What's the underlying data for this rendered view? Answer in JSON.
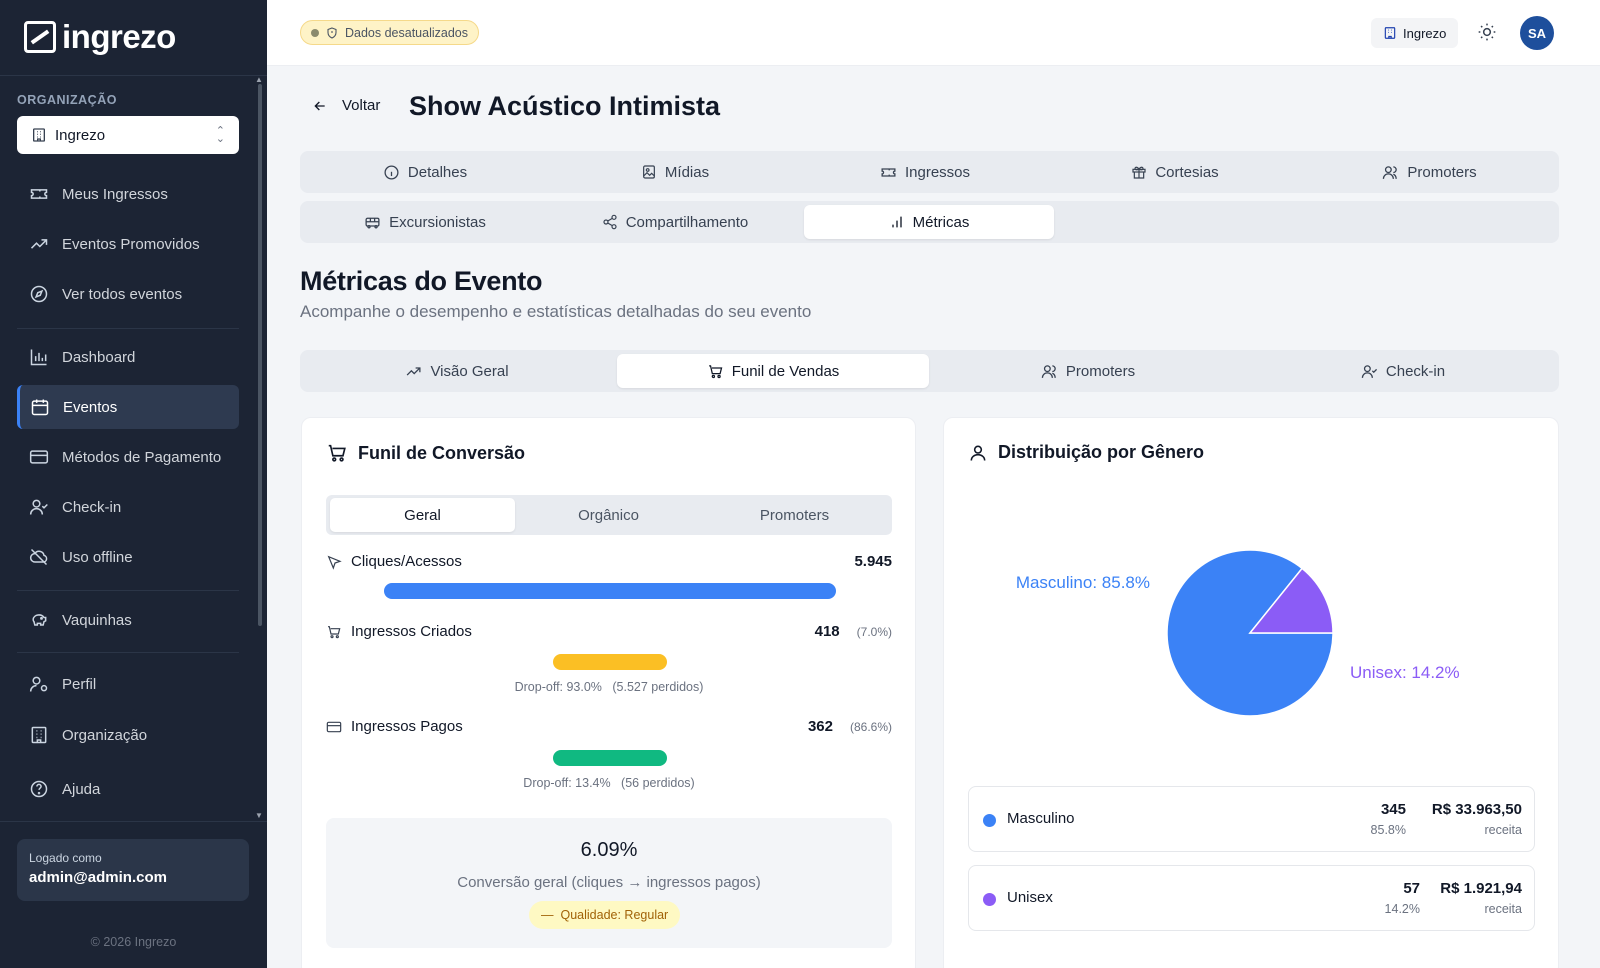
{
  "brand": {
    "name": "ingrezo"
  },
  "sidebar": {
    "org_label": "ORGANIZAÇÃO",
    "org_value": "Ingrezo",
    "items": [
      {
        "label": "Meus Ingressos",
        "icon": "ticket-icon"
      },
      {
        "label": "Eventos Promovidos",
        "icon": "trending-up-icon"
      },
      {
        "label": "Ver todos eventos",
        "icon": "compass-icon"
      },
      {
        "label": "Dashboard",
        "icon": "bar-chart-icon"
      },
      {
        "label": "Eventos",
        "icon": "calendar-icon",
        "active": true
      },
      {
        "label": "Métodos de Pagamento",
        "icon": "credit-card-icon"
      },
      {
        "label": "Check-in",
        "icon": "user-check-icon"
      },
      {
        "label": "Uso offline",
        "icon": "cloud-off-icon"
      },
      {
        "label": "Vaquinhas",
        "icon": "piggy-bank-icon"
      },
      {
        "label": "Perfil",
        "icon": "user-gear-icon"
      },
      {
        "label": "Organização",
        "icon": "building-icon"
      },
      {
        "label": "Ajuda",
        "icon": "help-circle-icon"
      }
    ],
    "logged_label": "Logado como",
    "logged_email": "admin@admin.com",
    "copyright": "© 2026 Ingrezo"
  },
  "topbar": {
    "stale_badge": "Dados desatualizados",
    "org_chip": "Ingrezo",
    "avatar": "SA"
  },
  "page": {
    "back_label": "Voltar",
    "title": "Show Acústico Intimista",
    "tabs_row1": [
      "Detalhes",
      "Mídias",
      "Ingressos",
      "Cortesias",
      "Promoters"
    ],
    "tabs_row2": [
      "Excursionistas",
      "Compartilhamento",
      "Métricas"
    ],
    "active_tab": "Métricas",
    "section_title": "Métricas do Evento",
    "section_subtitle": "Acompanhe o desempenho e estatísticas detalhadas do seu evento",
    "metric_tabs": [
      "Visão Geral",
      "Funil de Vendas",
      "Promoters",
      "Check-in"
    ],
    "active_metric_tab": "Funil de Vendas"
  },
  "funnel": {
    "title": "Funil de Conversão",
    "subtabs": [
      "Geral",
      "Orgânico",
      "Promoters"
    ],
    "active_subtab": "Geral",
    "steps": [
      {
        "label": "Cliques/Acessos",
        "value": "5.945",
        "pct": "",
        "color": "#3b82f6",
        "fill": 1.0,
        "dropoff": "",
        "lost": ""
      },
      {
        "label": "Ingressos Criados",
        "value": "418",
        "pct": "(7.0%)",
        "color": "#fbbf24",
        "fill": 0.07,
        "dropoff": "Drop-off: 93.0%",
        "lost": "(5.527 perdidos)"
      },
      {
        "label": "Ingressos Pagos",
        "value": "362",
        "pct": "(86.6%)",
        "color": "#10b981",
        "fill": 0.061,
        "dropoff": "Drop-off: 13.4%",
        "lost": "(56 perdidos)"
      }
    ],
    "conversion_value": "6.09%",
    "conversion_desc": "Conversão geral (cliques → ingressos pagos)",
    "quality": "Qualidade: Regular"
  },
  "gender": {
    "title": "Distribuição por Gênero",
    "rows": [
      {
        "name": "Masculino",
        "count": "345",
        "pct": "85.8%",
        "revenue": "R$ 33.963,50",
        "revenue_label": "receita",
        "color": "#3b82f6"
      },
      {
        "name": "Unisex",
        "count": "57",
        "pct": "14.2%",
        "revenue": "R$ 1.921,94",
        "revenue_label": "receita",
        "color": "#8b5cf6"
      }
    ]
  },
  "chart_data": {
    "type": "pie",
    "title": "Distribuição por Gênero",
    "categories": [
      "Masculino",
      "Unisex"
    ],
    "values": [
      85.8,
      14.2
    ],
    "labels": [
      "Masculino: 85.8%",
      "Unisex: 14.2%"
    ],
    "colors": [
      "#3b82f6",
      "#8b5cf6"
    ]
  }
}
